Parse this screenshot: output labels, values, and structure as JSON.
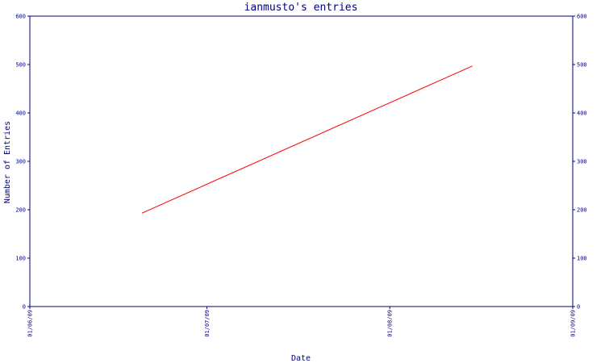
{
  "chart_data": {
    "type": "line",
    "title": "ianmusto's entries",
    "xlabel": "Date",
    "ylabel": "Number of Entries",
    "x_ticks": [
      "01/06/09",
      "01/07/09",
      "01/08/09",
      "01/09/09"
    ],
    "y_ticks": [
      0,
      100,
      200,
      300,
      400,
      500,
      600
    ],
    "ylim": [
      0,
      600
    ],
    "secondary_y_axis": true,
    "grid": false,
    "series": [
      {
        "color": "#ff0000",
        "points": [
          {
            "x": "2009-06-20",
            "y": 193
          },
          {
            "x": "2009-08-15",
            "y": 497
          }
        ]
      }
    ],
    "colors": {
      "axis": "#000080",
      "line": "#ff0000",
      "background": "#ffffff"
    }
  }
}
